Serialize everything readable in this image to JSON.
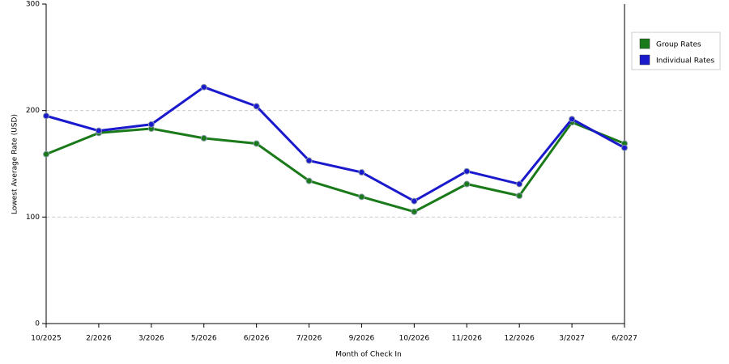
{
  "chart_data": {
    "type": "line",
    "x_label": "Month of Check In",
    "y_label": "Lowest Average Rate (USD)",
    "categories": [
      "10/2025",
      "2/2026",
      "3/2026",
      "5/2026",
      "6/2026",
      "7/2026",
      "9/2026",
      "10/2026",
      "11/2026",
      "12/2026",
      "3/2027",
      "6/2027"
    ],
    "series": [
      {
        "name": "Group Rates",
        "color": "#1a7a1a",
        "values": [
          159,
          179,
          183,
          174,
          169,
          134,
          119,
          105,
          131,
          120,
          189,
          169
        ]
      },
      {
        "name": "Individual Rates",
        "color": "#1a1acc",
        "values": [
          195,
          181,
          187,
          222,
          204,
          153,
          142,
          115,
          143,
          131,
          192,
          165
        ]
      }
    ],
    "ylim": [
      0,
      300
    ],
    "yticks": [
      0,
      100,
      200,
      300
    ],
    "grid": true,
    "legend": "top-right"
  }
}
